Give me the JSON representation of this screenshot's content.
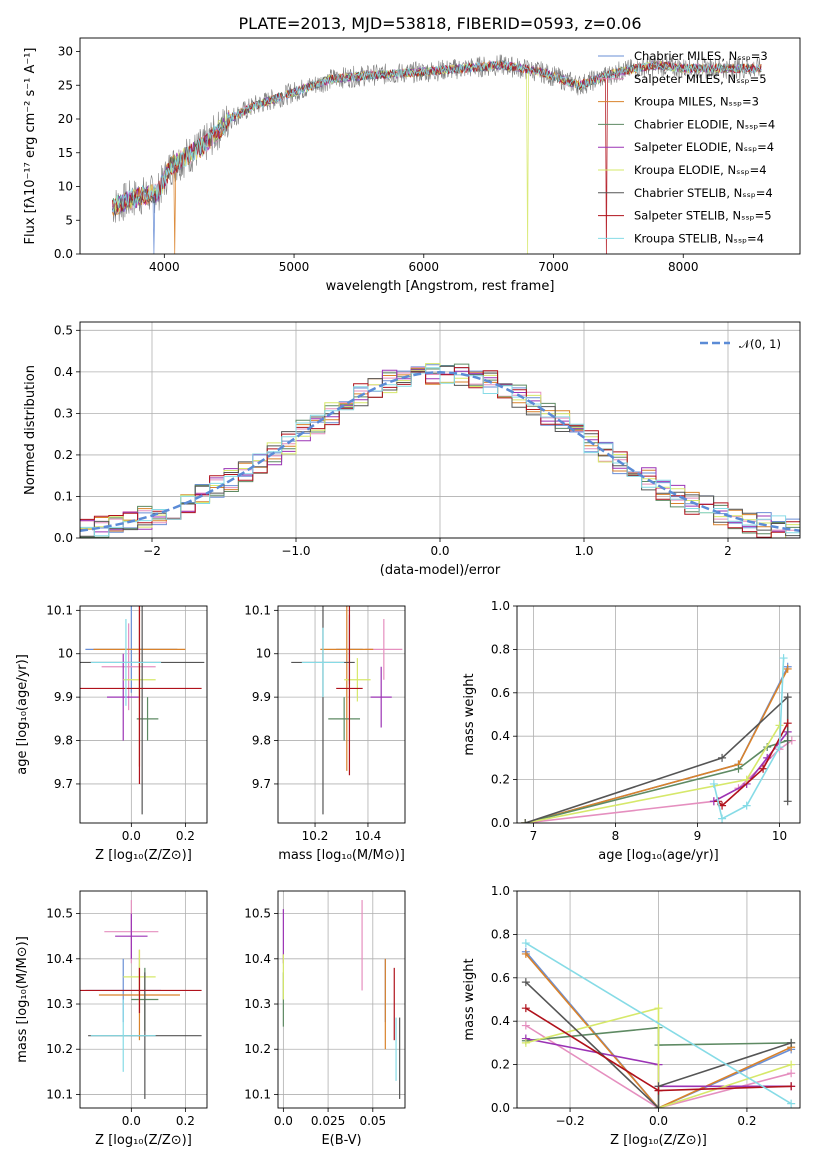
{
  "colors": {
    "Chabrier MILES": "#6a8fd6",
    "Salpeter MILES": "#e58fbf",
    "Kroupa MILES": "#d9822b",
    "Chabrier ELODIE": "#5e8a63",
    "Salpeter ELODIE": "#9b33b5",
    "Kroupa ELODIE": "#d6e86a",
    "Chabrier STELIB": "#555555",
    "Salpeter STELIB": "#b0121c",
    "Kroupa STELIB": "#86dbe6",
    "normal": "#5b8bd6"
  },
  "chart_data": [
    {
      "id": "spectrum",
      "type": "line",
      "title": "PLATE=2013, MJD=53818, FIBERID=0593, z=0.06",
      "xlabel": "wavelength [Angstrom, rest frame]",
      "ylabel": "Flux [fλ10⁻¹⁷ erg cm⁻² s⁻¹ A⁻¹]",
      "xlim": [
        3350,
        8900
      ],
      "ylim": [
        0,
        32
      ],
      "xticks": [
        4000,
        5000,
        6000,
        7000,
        8000
      ],
      "yticks": [
        0,
        5,
        10,
        15,
        20,
        25,
        30
      ],
      "grid": false,
      "legend": "right",
      "continuum": [
        [
          3600,
          7
        ],
        [
          3800,
          8.5
        ],
        [
          3950,
          9
        ],
        [
          4050,
          13
        ],
        [
          4300,
          16
        ],
        [
          4500,
          20
        ],
        [
          4700,
          22
        ],
        [
          5000,
          24
        ],
        [
          5300,
          26
        ],
        [
          5600,
          26.5
        ],
        [
          6000,
          27
        ],
        [
          6300,
          27.5
        ],
        [
          6600,
          28
        ],
        [
          6900,
          27
        ],
        [
          7200,
          25
        ],
        [
          7500,
          27
        ],
        [
          7800,
          28
        ],
        [
          8000,
          27.5
        ],
        [
          8300,
          27.5
        ],
        [
          8600,
          27.5
        ]
      ],
      "series": [
        {
          "name": "Chabrier MILES, Nₛₛₚ=3",
          "model": "Chabrier MILES"
        },
        {
          "name": "Salpeter MILES, Nₛₛₚ=5",
          "model": "Salpeter MILES"
        },
        {
          "name": "Kroupa MILES, Nₛₛₚ=3",
          "model": "Kroupa MILES"
        },
        {
          "name": "Chabrier ELODIE, Nₛₛₚ=4",
          "model": "Chabrier ELODIE"
        },
        {
          "name": "Salpeter ELODIE, Nₛₛₚ=4",
          "model": "Salpeter ELODIE"
        },
        {
          "name": "Kroupa ELODIE, Nₛₛₚ=4",
          "model": "Kroupa ELODIE"
        },
        {
          "name": "Chabrier STELIB, Nₛₛₚ=4",
          "model": "Chabrier STELIB"
        },
        {
          "name": "Salpeter STELIB, Nₛₛₚ=5",
          "model": "Salpeter STELIB"
        },
        {
          "name": "Kroupa STELIB, Nₛₛₚ=4",
          "model": "Kroupa STELIB"
        }
      ]
    },
    {
      "id": "residuals",
      "type": "line",
      "xlabel": "(data-model)/error",
      "ylabel": "Normed distribution",
      "xlim": [
        -2.5,
        2.5
      ],
      "ylim": [
        0,
        0.52
      ],
      "xticks": [
        -2,
        -1,
        0,
        1,
        2
      ],
      "yticks": [
        0.0,
        0.1,
        0.2,
        0.3,
        0.4,
        0.5
      ],
      "grid": true,
      "legend": "top-right",
      "normal_label": "𝒩(0, 1)",
      "bin_width": 0.1
    },
    {
      "id": "age-vs-Z",
      "type": "scatter",
      "xlabel": "Z [log₁₀(Z/Z⊙)]",
      "ylabel": "age  [log₁₀(age/yr)]",
      "xlim": [
        -0.19,
        0.28
      ],
      "ylim": [
        9.61,
        10.11
      ],
      "xticks": [
        0.0,
        0.2
      ],
      "yticks": [
        9.7,
        9.8,
        9.9,
        10.0,
        10.1
      ],
      "grid": true,
      "points": [
        {
          "model": "Chabrier MILES",
          "x": 0.0,
          "y": 10.01,
          "xerr": 0.17,
          "yerr": 0.1
        },
        {
          "model": "Salpeter MILES",
          "x": -0.01,
          "y": 9.97,
          "xerr": 0.1,
          "yerr": 0.1
        },
        {
          "model": "Kroupa MILES",
          "x": 0.03,
          "y": 10.01,
          "xerr": 0.17,
          "yerr": 0.27
        },
        {
          "model": "Chabrier ELODIE",
          "x": 0.06,
          "y": 9.85,
          "xerr": 0.04,
          "yerr": 0.05
        },
        {
          "model": "Salpeter ELODIE",
          "x": -0.03,
          "y": 9.9,
          "xerr": 0.06,
          "yerr": 0.1
        },
        {
          "model": "Kroupa ELODIE",
          "x": 0.03,
          "y": 9.94,
          "xerr": 0.06,
          "yerr": 0.05
        },
        {
          "model": "Chabrier STELIB",
          "x": 0.04,
          "y": 9.98,
          "xerr": 0.23,
          "yerr": 0.35
        },
        {
          "model": "Salpeter STELIB",
          "x": 0.03,
          "y": 9.92,
          "xerr": 0.23,
          "yerr": 0.22
        },
        {
          "model": "Kroupa STELIB",
          "x": -0.02,
          "y": 9.98,
          "xerr": 0.13,
          "yerr": 0.1
        }
      ]
    },
    {
      "id": "age-vs-mass",
      "type": "scatter",
      "xlabel": "mass [log₁₀(M/M⊙)]",
      "xlim": [
        10.06,
        10.54
      ],
      "ylim": [
        9.61,
        10.11
      ],
      "xticks": [
        10.2,
        10.4
      ],
      "yticks": [
        9.7,
        9.8,
        9.9,
        10.0,
        10.1
      ],
      "grid": true,
      "points": [
        {
          "model": "Chabrier MILES",
          "x": 10.33,
          "y": 10.01,
          "xerr": 0.05,
          "yerr": 0.08
        },
        {
          "model": "Salpeter MILES",
          "x": 10.46,
          "y": 10.01,
          "xerr": 0.07,
          "yerr": 0.07
        },
        {
          "model": "Kroupa MILES",
          "x": 10.32,
          "y": 10.01,
          "xerr": 0.1,
          "yerr": 0.28
        },
        {
          "model": "Chabrier ELODIE",
          "x": 10.31,
          "y": 9.85,
          "xerr": 0.06,
          "yerr": 0.05
        },
        {
          "model": "Salpeter ELODIE",
          "x": 10.45,
          "y": 9.9,
          "xerr": 0.04,
          "yerr": 0.07
        },
        {
          "model": "Kroupa ELODIE",
          "x": 10.36,
          "y": 9.94,
          "xerr": 0.05,
          "yerr": 0.05
        },
        {
          "model": "Chabrier STELIB",
          "x": 10.23,
          "y": 9.98,
          "xerr": 0.12,
          "yerr": 0.35
        },
        {
          "model": "Salpeter STELIB",
          "x": 10.33,
          "y": 9.92,
          "xerr": 0.05,
          "yerr": 0.2
        },
        {
          "model": "Kroupa STELIB",
          "x": 10.23,
          "y": 9.98,
          "xerr": 0.08,
          "yerr": 0.08
        }
      ]
    },
    {
      "id": "weight-vs-age",
      "type": "line",
      "xlabel": "age  [log₁₀(age/yr)]",
      "ylabel": "mass weight",
      "xlim": [
        6.8,
        10.25
      ],
      "ylim": [
        0,
        1
      ],
      "xticks": [
        7,
        8,
        9,
        10
      ],
      "yticks": [
        0.0,
        0.2,
        0.4,
        0.6,
        0.8,
        1.0
      ],
      "grid": true,
      "series": [
        {
          "model": "Chabrier MILES",
          "points": [
            [
              6.9,
              0.0
            ],
            [
              9.5,
              0.27
            ],
            [
              10.1,
              0.72
            ]
          ]
        },
        {
          "model": "Salpeter MILES",
          "points": [
            [
              6.9,
              0.0
            ],
            [
              9.2,
              0.1
            ],
            [
              9.5,
              0.16
            ],
            [
              10.0,
              0.34
            ],
            [
              10.15,
              0.38
            ]
          ]
        },
        {
          "model": "Kroupa MILES",
          "points": [
            [
              6.9,
              0.0
            ],
            [
              9.5,
              0.27
            ],
            [
              10.1,
              0.71
            ]
          ]
        },
        {
          "model": "Chabrier ELODIE",
          "points": [
            [
              6.9,
              0.0
            ],
            [
              9.5,
              0.25
            ],
            [
              9.85,
              0.35
            ],
            [
              10.1,
              0.38
            ]
          ]
        },
        {
          "model": "Salpeter ELODIE",
          "points": [
            [
              9.2,
              0.1
            ],
            [
              9.6,
              0.18
            ],
            [
              9.85,
              0.3
            ],
            [
              10.1,
              0.42
            ]
          ]
        },
        {
          "model": "Kroupa ELODIE",
          "points": [
            [
              6.9,
              0.0
            ],
            [
              9.6,
              0.2
            ],
            [
              10.0,
              0.45
            ]
          ]
        },
        {
          "model": "Chabrier STELIB",
          "points": [
            [
              6.9,
              0.0
            ],
            [
              9.3,
              0.3
            ],
            [
              10.1,
              0.58
            ],
            [
              10.1,
              0.1
            ]
          ]
        },
        {
          "model": "Salpeter STELIB",
          "points": [
            [
              9.25,
              0.1
            ],
            [
              9.3,
              0.08
            ],
            [
              9.8,
              0.25
            ],
            [
              10.1,
              0.46
            ]
          ]
        },
        {
          "model": "Kroupa STELIB",
          "points": [
            [
              9.2,
              0.18
            ],
            [
              9.3,
              0.02
            ],
            [
              9.6,
              0.08
            ],
            [
              10.0,
              0.35
            ],
            [
              10.05,
              0.76
            ]
          ]
        }
      ]
    },
    {
      "id": "mass-vs-Z",
      "type": "scatter",
      "xlabel": "Z [log₁₀(Z/Z⊙)]",
      "ylabel": "mass [log₁₀(M/M⊙)]",
      "xlim": [
        -0.19,
        0.28
      ],
      "ylim": [
        10.07,
        10.55
      ],
      "xticks": [
        0.0,
        0.2
      ],
      "yticks": [
        10.1,
        10.2,
        10.3,
        10.4,
        10.5
      ],
      "grid": true,
      "points": [
        {
          "model": "Chabrier MILES",
          "x": -0.03,
          "y": 10.33,
          "xerr": 0.14,
          "yerr": 0.07
        },
        {
          "model": "Salpeter MILES",
          "x": 0.0,
          "y": 10.46,
          "xerr": 0.1,
          "yerr": 0.07
        },
        {
          "model": "Kroupa MILES",
          "x": 0.03,
          "y": 10.32,
          "xerr": 0.15,
          "yerr": 0.1
        },
        {
          "model": "Chabrier ELODIE",
          "x": 0.05,
          "y": 10.31,
          "xerr": 0.05,
          "yerr": 0.07
        },
        {
          "model": "Salpeter ELODIE",
          "x": 0.0,
          "y": 10.45,
          "xerr": 0.06,
          "yerr": 0.05
        },
        {
          "model": "Kroupa ELODIE",
          "x": 0.03,
          "y": 10.36,
          "xerr": 0.06,
          "yerr": 0.06
        },
        {
          "model": "Chabrier STELIB",
          "x": 0.05,
          "y": 10.23,
          "xerr": 0.21,
          "yerr": 0.14
        },
        {
          "model": "Salpeter STELIB",
          "x": 0.03,
          "y": 10.33,
          "xerr": 0.23,
          "yerr": 0.05
        },
        {
          "model": "Kroupa STELIB",
          "x": -0.03,
          "y": 10.23,
          "xerr": 0.12,
          "yerr": 0.08
        }
      ]
    },
    {
      "id": "mass-vs-ebv",
      "type": "scatter",
      "xlabel": "E(B-V)",
      "xlim": [
        -0.003,
        0.068
      ],
      "ylim": [
        10.07,
        10.55
      ],
      "xticks": [
        0.0,
        0.025,
        0.05
      ],
      "yticks": [
        10.1,
        10.2,
        10.3,
        10.4,
        10.5
      ],
      "grid": true,
      "points": [
        {
          "model": "Chabrier MILES",
          "x": 0.057,
          "y": 10.33,
          "xerr": 0.0,
          "yerr": 0.07
        },
        {
          "model": "Salpeter MILES",
          "x": 0.044,
          "y": 10.43,
          "xerr": 0.0,
          "yerr": 0.1
        },
        {
          "model": "Kroupa MILES",
          "x": 0.057,
          "y": 10.3,
          "xerr": 0.0,
          "yerr": 0.1
        },
        {
          "model": "Chabrier ELODIE",
          "x": 0.0,
          "y": 10.31,
          "xerr": 0.0,
          "yerr": 0.06
        },
        {
          "model": "Salpeter ELODIE",
          "x": 0.0,
          "y": 10.45,
          "xerr": 0.0,
          "yerr": 0.06
        },
        {
          "model": "Kroupa ELODIE",
          "x": 0.0,
          "y": 10.36,
          "xerr": 0.0,
          "yerr": 0.05
        },
        {
          "model": "Chabrier STELIB",
          "x": 0.065,
          "y": 10.18,
          "xerr": 0.0,
          "yerr": 0.09
        },
        {
          "model": "Salpeter STELIB",
          "x": 0.062,
          "y": 10.3,
          "xerr": 0.0,
          "yerr": 0.08
        },
        {
          "model": "Kroupa STELIB",
          "x": 0.063,
          "y": 10.2,
          "xerr": 0.0,
          "yerr": 0.07
        }
      ]
    },
    {
      "id": "weight-vs-Z",
      "type": "line",
      "xlabel": "Z [log₁₀(Z/Z⊙)]",
      "ylabel": "mass weight",
      "xlim": [
        -0.32,
        0.32
      ],
      "ylim": [
        0,
        1
      ],
      "xticks": [
        -0.2,
        0.0,
        0.2
      ],
      "yticks": [
        0.0,
        0.2,
        0.4,
        0.6,
        0.8,
        1.0
      ],
      "grid": true,
      "series": [
        {
          "model": "Chabrier MILES",
          "points": [
            [
              -0.3,
              0.72
            ],
            [
              0.0,
              0.0
            ],
            [
              0.3,
              0.27
            ]
          ]
        },
        {
          "model": "Salpeter MILES",
          "points": [
            [
              -0.3,
              0.38
            ],
            [
              0.0,
              0.0
            ],
            [
              0.3,
              0.16
            ]
          ]
        },
        {
          "model": "Kroupa MILES",
          "points": [
            [
              -0.3,
              0.71
            ],
            [
              0.0,
              0.0
            ],
            [
              0.3,
              0.28
            ]
          ]
        },
        {
          "model": "Chabrier ELODIE",
          "points": [
            [
              -0.3,
              0.31
            ],
            [
              0.0,
              0.37
            ],
            [
              0.0,
              0.29
            ],
            [
              0.3,
              0.3
            ]
          ]
        },
        {
          "model": "Salpeter ELODIE",
          "points": [
            [
              -0.3,
              0.32
            ],
            [
              0.0,
              0.2
            ],
            [
              0.0,
              0.1
            ],
            [
              0.3,
              0.1
            ]
          ]
        },
        {
          "model": "Kroupa ELODIE",
          "points": [
            [
              -0.3,
              0.3
            ],
            [
              0.0,
              0.46
            ],
            [
              0.0,
              0.0
            ],
            [
              0.3,
              0.2
            ]
          ]
        },
        {
          "model": "Chabrier STELIB",
          "points": [
            [
              -0.3,
              0.58
            ],
            [
              0.0,
              0.0
            ],
            [
              0.0,
              0.1
            ],
            [
              0.3,
              0.3
            ]
          ]
        },
        {
          "model": "Salpeter STELIB",
          "points": [
            [
              -0.3,
              0.46
            ],
            [
              0.0,
              0.08
            ],
            [
              0.3,
              0.1
            ]
          ]
        },
        {
          "model": "Kroupa STELIB",
          "points": [
            [
              -0.3,
              0.76
            ],
            [
              0.3,
              0.02
            ]
          ]
        }
      ]
    }
  ]
}
